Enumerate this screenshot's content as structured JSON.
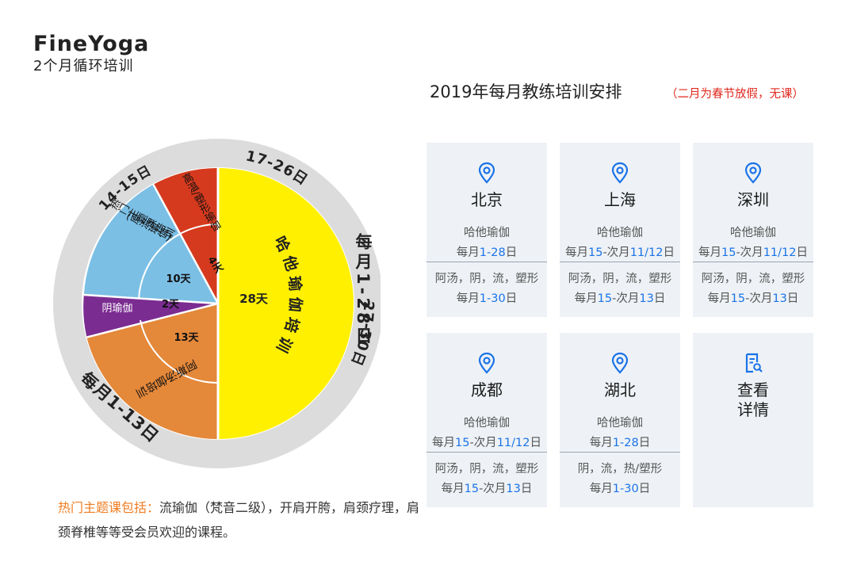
{
  "brand": {
    "name": "FineYoga",
    "subtitle": "2个月循环培训"
  },
  "wheel": {
    "outer_labels": {
      "d27_30": "27-30日",
      "d17_26": "17-26日",
      "d14_15": "14-15日",
      "d1_13": "每月1-13日",
      "d1_28": "每月1-28日"
    },
    "segments": [
      {
        "name": "哈他瑜伽培训",
        "days_label": "28天",
        "color": "#fff000"
      },
      {
        "name": "高温/塑形瑜伽",
        "days_label": "4天",
        "color": "#d63a1e"
      },
      {
        "name": "热门主题课培训",
        "name2": "(原流瑜伽)",
        "days_label": "10天",
        "color": "#7bbfe5"
      },
      {
        "name": "阴瑜伽",
        "days_label": "2天",
        "color": "#7b2c91"
      },
      {
        "name": "阿斯汤伽培训",
        "days_label": "13天",
        "color": "#e4883a"
      }
    ]
  },
  "header": {
    "title": "2019年每月教练培训安排",
    "note": "（二月为春节放假，无课）"
  },
  "cards": [
    {
      "city": "北京",
      "course": "哈他瑜伽",
      "date_pre": "每月",
      "date_num": "1-28",
      "date_post": "日",
      "course2": "阿汤，阴，流，塑形",
      "date2_pre": "每月",
      "date2_num": "1-30",
      "date2_post": "日"
    },
    {
      "city": "上海",
      "course": "哈他瑜伽",
      "date_pre": "每月",
      "date_num": "15",
      "date_mid": "-次月",
      "date_num2": "11/12",
      "date_post": "日",
      "course2": "阿汤，阴，流，塑形",
      "date2_pre": "每月",
      "date2_num": "15",
      "date2_mid": "-次月",
      "date2_num2": "13",
      "date2_post": "日"
    },
    {
      "city": "深圳",
      "course": "哈他瑜伽",
      "date_pre": "每月",
      "date_num": "15",
      "date_mid": "-次月",
      "date_num2": "11/12",
      "date_post": "日",
      "course2": "阿汤，阴，流，塑形",
      "date2_pre": "每月",
      "date2_num": "15",
      "date2_mid": "-次月",
      "date2_num2": "13",
      "date2_post": "日"
    },
    {
      "city": "成都",
      "course": "哈他瑜伽",
      "date_pre": "每月",
      "date_num": "15",
      "date_mid": "-次月",
      "date_num2": "11/12",
      "date_post": "日",
      "course2": "阿汤，阴，流，塑形",
      "date2_pre": "每月",
      "date2_num": "15",
      "date2_mid": "-次月",
      "date2_num2": "13",
      "date2_post": "日"
    },
    {
      "city": "湖北",
      "course": "哈他瑜伽",
      "date_pre": "每月",
      "date_num": "1-28",
      "date_post": "日",
      "course2": "阴，流，热/塑形",
      "date2_pre": "每月",
      "date2_num": "1-30",
      "date2_post": "日"
    }
  ],
  "details_card": {
    "label_line1": "查看",
    "label_line2": "详情"
  },
  "footer": {
    "highlight": "热门主题课包括：",
    "text": "流瑜伽（梵音二级），开肩开胯，肩颈疗理，肩颈脊椎等等受会员欢迎的课程。"
  },
  "colors": {
    "accent_blue": "#1a73e8",
    "note_red": "#e0281e",
    "highlight_orange": "#f07c22",
    "card_bg": "#eef2f6",
    "ring_gray": "#dcdcdc"
  },
  "icons": {
    "city": "location-pin-icon",
    "details": "document-search-icon"
  }
}
